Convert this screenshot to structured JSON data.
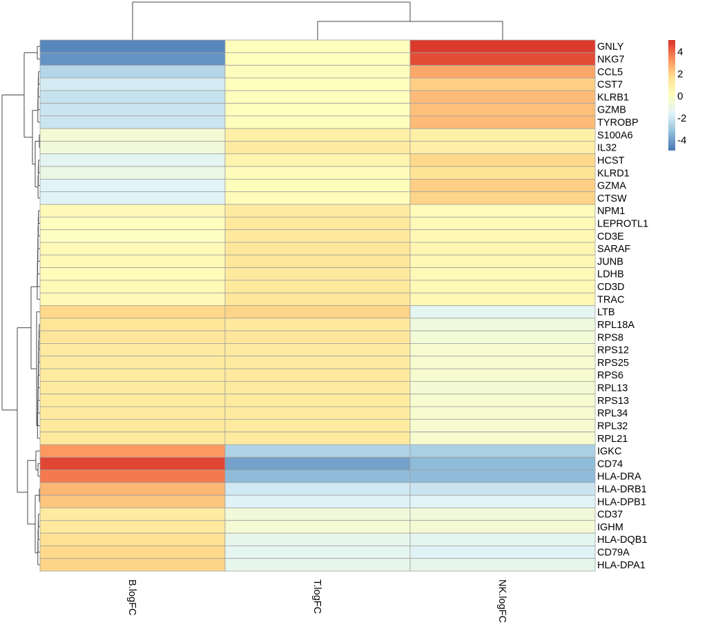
{
  "chart_data": {
    "type": "heatmap",
    "title": "",
    "columns": [
      "B.logFC",
      "T.logFC",
      "NK.logFC"
    ],
    "rows": [
      "GNLY",
      "NKG7",
      "CCL5",
      "CST7",
      "KLRB1",
      "GZMB",
      "TYROBP",
      "S100A6",
      "IL32",
      "HCST",
      "KLRD1",
      "GZMA",
      "CTSW",
      "NPM1",
      "LEPROTL1",
      "CD3E",
      "SARAF",
      "JUNB",
      "LDHB",
      "CD3D",
      "TRAC",
      "LTB",
      "RPL18A",
      "RPS8",
      "RPS12",
      "RPS25",
      "RPS6",
      "RPL13",
      "RPS13",
      "RPL34",
      "RPL32",
      "RPL21",
      "IGKC",
      "CD74",
      "HLA-DRA",
      "HLA-DRB1",
      "HLA-DPB1",
      "CD37",
      "IGHM",
      "HLA-DQB1",
      "CD79A",
      "HLA-DPA1"
    ],
    "values": [
      [
        -4.6,
        0.1,
        4.8
      ],
      [
        -4.3,
        0.1,
        4.5
      ],
      [
        -2.6,
        0.1,
        2.8
      ],
      [
        -1.9,
        0.1,
        2.0
      ],
      [
        -2.2,
        0.1,
        2.4
      ],
      [
        -2.1,
        0.1,
        2.3
      ],
      [
        -2.1,
        0.1,
        2.4
      ],
      [
        -0.6,
        0.8,
        0.8
      ],
      [
        -0.8,
        1.1,
        0.9
      ],
      [
        -1.5,
        0.6,
        1.8
      ],
      [
        -1.1,
        0.2,
        1.5
      ],
      [
        -1.6,
        0.1,
        2.0
      ],
      [
        -1.6,
        0.2,
        1.9
      ],
      [
        0.3,
        1.1,
        0.2
      ],
      [
        0.0,
        1.2,
        0.3
      ],
      [
        -0.1,
        1.2,
        0.4
      ],
      [
        0.3,
        1.3,
        0.5
      ],
      [
        0.3,
        1.3,
        0.4
      ],
      [
        0.2,
        1.2,
        0.3
      ],
      [
        0.3,
        1.2,
        0.3
      ],
      [
        0.3,
        1.3,
        0.4
      ],
      [
        1.8,
        1.9,
        -1.4
      ],
      [
        1.4,
        1.2,
        -0.9
      ],
      [
        1.3,
        1.3,
        -0.7
      ],
      [
        1.1,
        1.1,
        -0.5
      ],
      [
        1.1,
        1.1,
        -0.5
      ],
      [
        1.1,
        1.2,
        -0.5
      ],
      [
        1.1,
        1.1,
        -0.6
      ],
      [
        1.1,
        1.1,
        -0.5
      ],
      [
        1.1,
        1.1,
        -0.5
      ],
      [
        1.2,
        1.1,
        -0.5
      ],
      [
        1.2,
        1.1,
        -0.5
      ],
      [
        3.1,
        -2.7,
        -2.8
      ],
      [
        4.6,
        -4.0,
        -3.4
      ],
      [
        3.7,
        -3.4,
        -3.4
      ],
      [
        2.5,
        -2.0,
        -2.1
      ],
      [
        2.2,
        -1.7,
        -1.6
      ],
      [
        1.1,
        -0.8,
        -0.8
      ],
      [
        1.2,
        -0.6,
        -0.6
      ],
      [
        1.6,
        -1.3,
        -1.4
      ],
      [
        1.8,
        -1.4,
        -1.6
      ],
      [
        1.9,
        -1.3,
        -1.3
      ]
    ],
    "colorbar": {
      "ticks": [
        4,
        2,
        0,
        -2,
        -4
      ],
      "range": [
        -5,
        5
      ],
      "colors": [
        "#4575b4",
        "#91bfdb",
        "#e0f3f8",
        "#ffffbf",
        "#fee090",
        "#fc8d59",
        "#d73027"
      ]
    },
    "column_dendrogram": true,
    "row_dendrogram": true
  }
}
